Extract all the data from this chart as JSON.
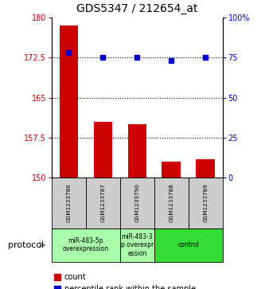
{
  "title": "GDS5347 / 212654_at",
  "samples": [
    "GSM1233786",
    "GSM1233787",
    "GSM1233790",
    "GSM1233788",
    "GSM1233789"
  ],
  "counts": [
    178.5,
    160.5,
    160.0,
    153.0,
    153.5
  ],
  "percentiles": [
    78,
    75,
    75,
    73,
    75
  ],
  "ylim_left": [
    150,
    180
  ],
  "ylim_right": [
    0,
    100
  ],
  "yticks_left": [
    150,
    157.5,
    165,
    172.5,
    180
  ],
  "yticks_right": [
    0,
    25,
    50,
    75,
    100
  ],
  "ytick_labels_left": [
    "150",
    "157.5",
    "165",
    "172.5",
    "180"
  ],
  "ytick_labels_right": [
    "0",
    "25",
    "50",
    "75",
    "100%"
  ],
  "hlines": [
    157.5,
    165,
    172.5
  ],
  "bar_color": "#cc0000",
  "dot_color": "#0000cc",
  "bar_width": 0.55,
  "group_data": [
    {
      "start": 0,
      "end": 1,
      "label": "miR-483-5p\noverexpression",
      "color": "#aaffaa"
    },
    {
      "start": 2,
      "end": 2,
      "label": "miR-483-3\np overexpr\nession",
      "color": "#aaffaa"
    },
    {
      "start": 3,
      "end": 4,
      "label": "control",
      "color": "#33dd33"
    }
  ],
  "protocol_label": "protocol",
  "legend_count_label": "count",
  "legend_percentile_label": "percentile rank within the sample",
  "background_color": "#ffffff",
  "tick_color_left": "#cc0000",
  "tick_color_right": "#0000cc",
  "sample_box_color": "#cccccc"
}
